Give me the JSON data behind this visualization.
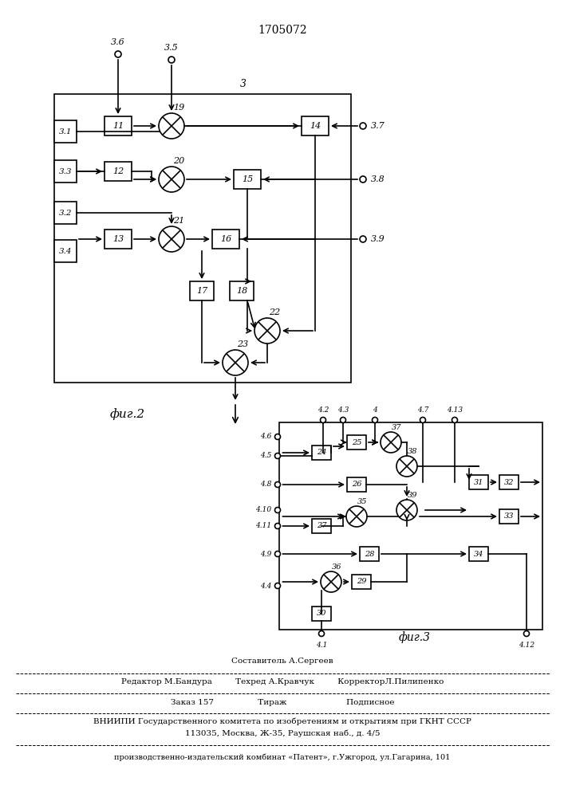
{
  "title": "1705072",
  "fig2_label": "фиг.2",
  "fig3_label": "фиг.3",
  "footer_lines": [
    "Составитель А.Сергеев",
    "Редактор М.Бандура         Техред А.Кравчук         КорректорЛ.Пилипенко",
    "Заказ 157                 Тираж                       Подписное",
    "ВНИИПИ Государственного комитета по изобретениям и открытиям при ГКНТ СССР",
    "113035, Москва, Ж-35, Раушская наб., д. 4/5",
    "производственно-издательский комбинат «Патент», г.Ужгород, ул.Гагарина, 101"
  ],
  "bg_color": "#ffffff",
  "line_color": "#000000"
}
